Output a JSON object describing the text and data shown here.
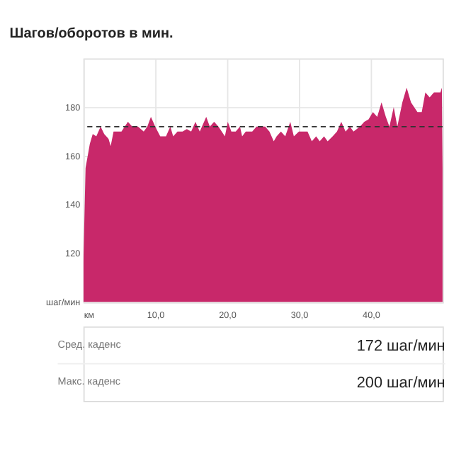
{
  "chart_data": {
    "type": "area",
    "title": "Шагов/оборотов в мин.",
    "x": [
      0,
      0.3,
      0.9,
      1.3,
      1.8,
      2.4,
      2.9,
      3.5,
      3.8,
      4.2,
      5.3,
      6.2,
      6.8,
      7.6,
      8.4,
      8.9,
      9.4,
      10,
      10.7,
      11.5,
      12.1,
      12.5,
      13.1,
      13.8,
      14.4,
      15,
      15.6,
      16.2,
      17.1,
      17.6,
      18.2,
      18.8,
      19.7,
      20.1,
      20.6,
      21.2,
      21.8,
      22.1,
      22.6,
      23.5,
      24.1,
      25.3,
      25.9,
      26.5,
      26.9,
      27.5,
      28.1,
      28.8,
      29.3,
      30,
      31.2,
      31.8,
      32.4,
      32.9,
      33.5,
      34,
      34.7,
      35.3,
      35.9,
      36.5,
      37.1,
      37.6,
      38.5,
      39.1,
      39.7,
      40.3,
      40.9,
      41.5,
      42.1,
      42.6,
      43.2,
      43.7,
      44.4,
      45,
      45.6,
      46.5,
      47.1,
      47.6,
      48.2,
      48.8,
      49.7,
      49.9,
      50
    ],
    "values": [
      116,
      155,
      165,
      169,
      168,
      172,
      169,
      167,
      164,
      170,
      170,
      174,
      172,
      172,
      170,
      172,
      176,
      172,
      168,
      168,
      172,
      168,
      170,
      170,
      171,
      170,
      174,
      170,
      176,
      172,
      174,
      172,
      168,
      174,
      170,
      170,
      172,
      168,
      170,
      170,
      172,
      172,
      170,
      166,
      168,
      170,
      168,
      174,
      168,
      170,
      170,
      166,
      168,
      166,
      168,
      166,
      168,
      170,
      174,
      170,
      172,
      170,
      172,
      174,
      175,
      178,
      176,
      182,
      176,
      172,
      180,
      172,
      182,
      188,
      182,
      178,
      178,
      186,
      184,
      186,
      186,
      188,
      155
    ],
    "color": "#c8286a",
    "xlim": [
      0,
      50
    ],
    "ylim": [
      100,
      200
    ],
    "xticks": [
      {
        "value": 0,
        "label": "км"
      },
      {
        "value": 10,
        "label": "10,0"
      },
      {
        "value": 20,
        "label": "20,0"
      },
      {
        "value": 30,
        "label": "30,0"
      },
      {
        "value": 40,
        "label": "40,0"
      }
    ],
    "yticks": [
      {
        "value": 100,
        "label": "шаг/мин"
      },
      120,
      140,
      160,
      180
    ],
    "grid": true,
    "ref_lines": [
      {
        "axis": "y",
        "value": 172,
        "color": "#333333",
        "line_style": "dashed"
      }
    ],
    "annotations": [
      "Сред. каденс",
      "172 шаг/мин",
      "Макс. каденс",
      "200 шаг/мин"
    ]
  }
}
